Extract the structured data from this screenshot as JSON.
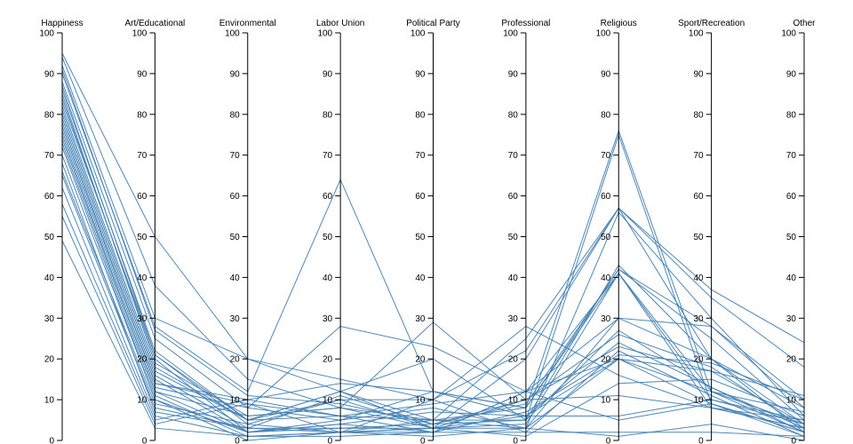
{
  "chart_data": {
    "type": "parallel-coordinates",
    "line_color": "#4682b4",
    "dimensions": [
      "Happiness",
      "Art/Educational",
      "Environmental",
      "Labor Union",
      "Political Party",
      "Professional",
      "Religious",
      "Sport/Recreation",
      "Other"
    ],
    "range": [
      0,
      100
    ],
    "ticks": [
      0,
      10,
      20,
      30,
      40,
      50,
      60,
      70,
      80,
      90,
      100
    ],
    "series": [
      {
        "values": [
          95,
          50,
          20,
          12,
          5,
          8,
          76,
          12,
          2
        ]
      },
      {
        "values": [
          94,
          38,
          15,
          8,
          5,
          25,
          57,
          37,
          24
        ]
      },
      {
        "values": [
          92,
          30,
          20,
          15,
          10,
          22,
          57,
          35,
          18
        ]
      },
      {
        "values": [
          90,
          28,
          12,
          64,
          12,
          8,
          42,
          28,
          10
        ]
      },
      {
        "values": [
          88,
          25,
          8,
          28,
          23,
          12,
          41,
          12,
          4
        ]
      },
      {
        "values": [
          87,
          21,
          5,
          12,
          20,
          5,
          43,
          20,
          8
        ]
      },
      {
        "values": [
          85,
          19,
          6,
          8,
          29,
          10,
          26,
          18,
          3
        ]
      },
      {
        "values": [
          82,
          18,
          5,
          10,
          10,
          28,
          16,
          8,
          5
        ]
      },
      {
        "values": [
          80,
          16,
          3,
          2,
          5,
          5,
          75,
          9,
          1
        ]
      },
      {
        "values": [
          79,
          15,
          2,
          5,
          8,
          3,
          56,
          30,
          6
        ]
      },
      {
        "values": [
          77,
          14,
          9,
          6,
          5,
          3,
          30,
          20,
          2
        ]
      },
      {
        "values": [
          76,
          13,
          8,
          5,
          12,
          6,
          20,
          12,
          7
        ]
      },
      {
        "values": [
          74,
          12,
          2,
          3,
          3,
          4,
          41,
          10,
          4
        ]
      },
      {
        "values": [
          73,
          11,
          1,
          1,
          2,
          2,
          22,
          11,
          1
        ]
      },
      {
        "values": [
          70,
          10,
          0,
          2,
          3,
          1,
          14,
          15,
          6
        ]
      },
      {
        "values": [
          66,
          9,
          4,
          10,
          3,
          10,
          11,
          8,
          3
        ]
      },
      {
        "values": [
          65,
          8,
          3,
          11,
          4,
          9,
          42,
          25,
          5
        ]
      },
      {
        "values": [
          62,
          6,
          1,
          2,
          2,
          12,
          5,
          9,
          2
        ]
      },
      {
        "values": [
          58,
          5,
          10,
          6,
          2,
          12,
          30,
          28,
          8
        ]
      },
      {
        "values": [
          55,
          4,
          9,
          2,
          1,
          3,
          1,
          4,
          0
        ]
      },
      {
        "values": [
          49,
          3,
          1,
          2,
          10,
          2,
          2,
          2,
          1
        ]
      },
      {
        "values": [
          86,
          22,
          5,
          12,
          3,
          20,
          57,
          20,
          4
        ]
      },
      {
        "values": [
          84,
          20,
          2,
          4,
          7,
          6,
          24,
          13,
          3
        ]
      },
      {
        "values": [
          81,
          17,
          5,
          6,
          9,
          12,
          20,
          9,
          2
        ]
      },
      {
        "values": [
          78,
          14,
          10,
          14,
          12,
          8,
          41,
          8,
          3
        ]
      },
      {
        "values": [
          75,
          12,
          6,
          8,
          3,
          3,
          20,
          17,
          4
        ]
      },
      {
        "values": [
          72,
          10,
          2,
          4,
          2,
          7,
          21,
          19,
          10
        ]
      },
      {
        "values": [
          68,
          7,
          3,
          3,
          4,
          5,
          27,
          13,
          2
        ]
      },
      {
        "values": [
          83,
          21,
          4,
          2,
          3,
          6,
          6,
          10,
          5
        ]
      },
      {
        "values": [
          91,
          27,
          11,
          9,
          4,
          10,
          23,
          17,
          11
        ]
      }
    ]
  }
}
